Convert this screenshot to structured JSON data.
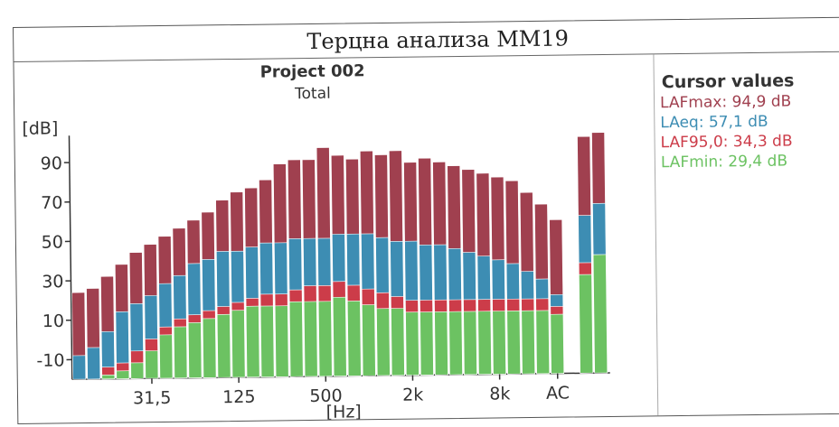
{
  "header": {
    "title": "Терцна анализа MM19"
  },
  "cursor": {
    "title": "Cursor values",
    "rows": [
      {
        "text": "LAFmax: 94,9 dB",
        "color": "#a0404f"
      },
      {
        "text": "LAeq: 57,1 dB",
        "color": "#3d8db3"
      },
      {
        "text": "LAF95,0: 34,3 dB",
        "color": "#cc3c49"
      },
      {
        "text": "LAFmin: 29,4 dB",
        "color": "#6cc262"
      }
    ]
  },
  "chart_data": {
    "type": "bar",
    "title": "Project 002",
    "subtitle": "Total",
    "ylabel": "[dB]",
    "xlabel": "[Hz]",
    "ylim": [
      -20,
      100
    ],
    "yticks": [
      "90",
      "70",
      "50",
      "30",
      "10",
      "-10"
    ],
    "xticks": [
      {
        "label": "31,5",
        "index": 5
      },
      {
        "label": "125",
        "index": 11
      },
      {
        "label": "500",
        "index": 17
      },
      {
        "label": "2k",
        "index": 23
      },
      {
        "label": "8k",
        "index": 29
      },
      {
        "label": "AC",
        "index": 33
      }
    ],
    "stacked_overlay": true,
    "series_colors": [
      "#a0404f",
      "#3d8db3",
      "#cc3c49",
      "#6cc262"
    ],
    "series_names": [
      "LAFmax",
      "LAeq",
      "LAF95,0",
      "LAFmin"
    ],
    "series": [
      {
        "name": "LAFmax",
        "values": [
          24,
          26,
          32,
          38,
          44,
          48,
          52,
          56,
          60,
          64,
          70,
          74,
          76,
          80,
          88,
          90,
          90,
          96,
          92,
          90,
          94,
          92,
          94,
          88,
          90,
          88,
          86,
          84,
          82,
          80,
          78,
          72,
          66,
          58,
          100,
          102
        ]
      },
      {
        "name": "LAeq",
        "values": [
          -8,
          -4,
          4,
          14,
          18,
          22,
          28,
          32,
          38,
          40,
          44,
          44,
          46,
          48,
          48,
          50,
          50,
          50,
          52,
          52,
          52,
          50,
          48,
          48,
          46,
          46,
          44,
          42,
          40,
          38,
          36,
          32,
          28,
          20,
          60,
          66
        ]
      },
      {
        "name": "LAF95,0",
        "values": [
          -22,
          -20,
          -14,
          -12,
          -6,
          0,
          6,
          10,
          12,
          14,
          16,
          18,
          20,
          22,
          22,
          24,
          26,
          26,
          28,
          26,
          24,
          22,
          20,
          18,
          18,
          18,
          18,
          18,
          18,
          18,
          18,
          18,
          18,
          14,
          36,
          40
        ]
      },
      {
        "name": "LAFmin",
        "values": [
          -20,
          -20,
          -18,
          -16,
          -12,
          -6,
          2,
          6,
          8,
          10,
          12,
          14,
          16,
          16,
          16,
          18,
          18,
          18,
          20,
          18,
          16,
          14,
          14,
          12,
          12,
          12,
          12,
          12,
          12,
          12,
          12,
          12,
          12,
          10,
          30,
          40
        ]
      }
    ]
  }
}
